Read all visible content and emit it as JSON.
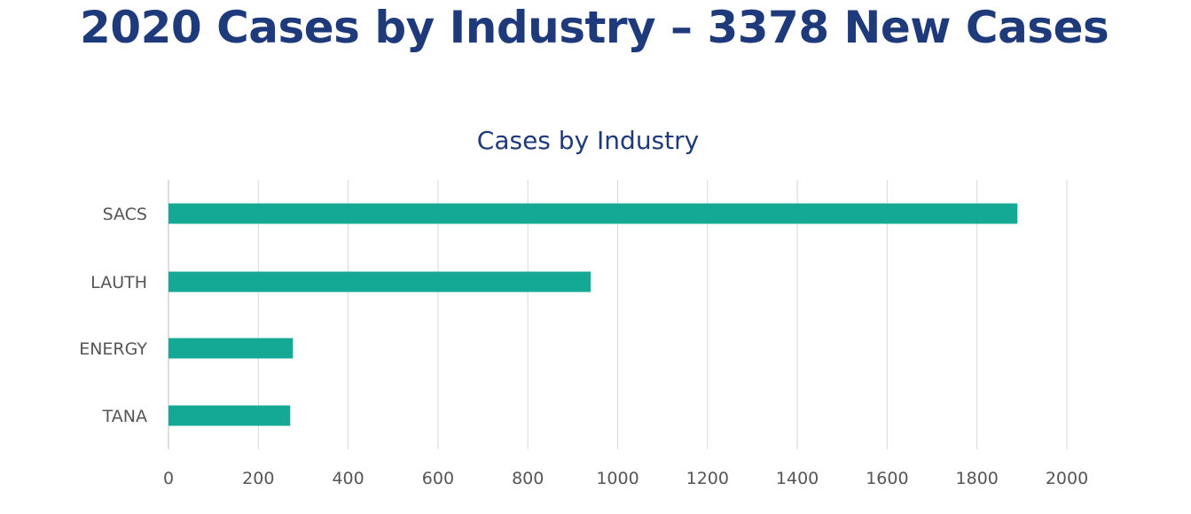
{
  "slide": {
    "title": "2020 Cases by Industry – 3378 New Cases"
  },
  "colors": {
    "title": "#1f3a7a",
    "bar": "#14a994",
    "grid": "#d9d9d9",
    "label": "#555555"
  },
  "chart_data": {
    "type": "bar",
    "orientation": "horizontal",
    "title": "Cases by Industry",
    "categories": [
      "SACS",
      "LAUTH",
      "ENERGY",
      "TANA"
    ],
    "values": [
      1890,
      940,
      277,
      271
    ],
    "xlim": [
      0,
      2000
    ],
    "xticks": [
      0,
      200,
      400,
      600,
      800,
      1000,
      1200,
      1400,
      1600,
      1800,
      2000
    ],
    "xlabel": "",
    "ylabel": "",
    "grid": "vertical",
    "legend": "none"
  }
}
